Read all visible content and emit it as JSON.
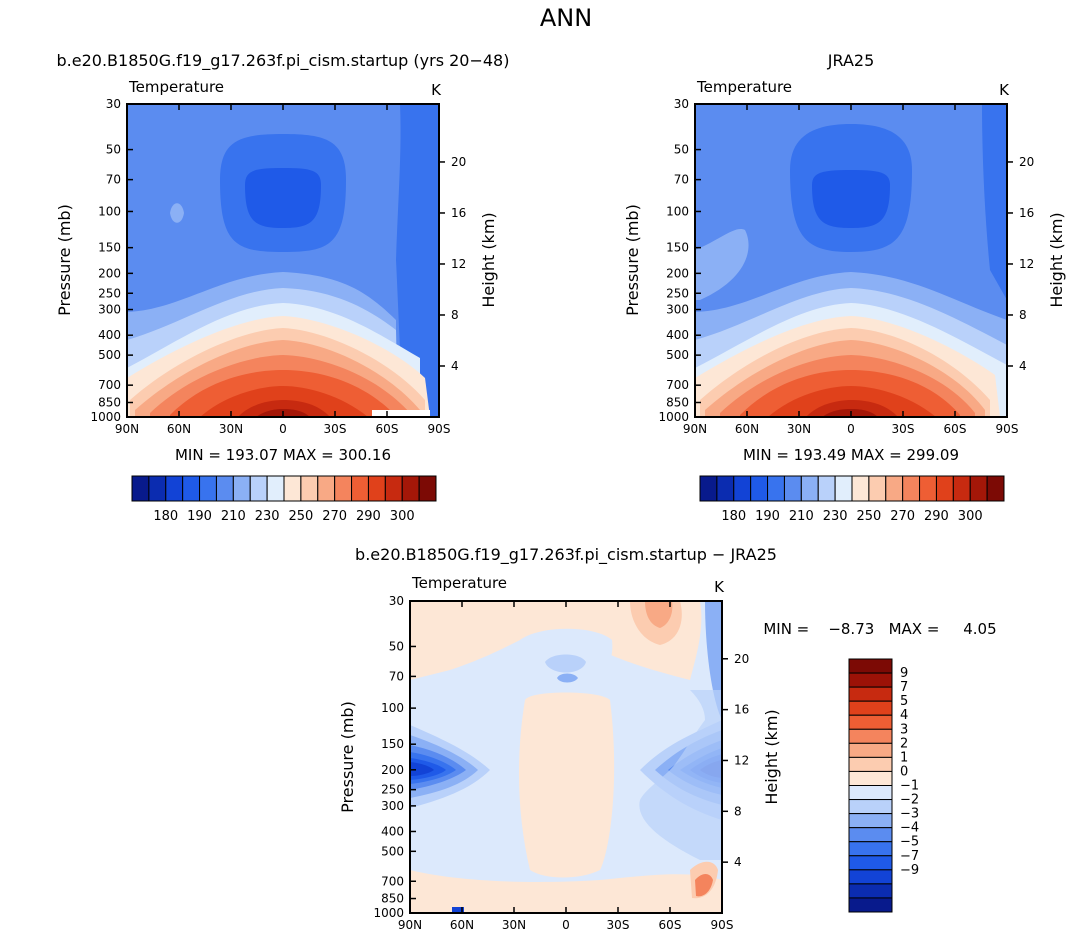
{
  "page": {
    "title": "ANN"
  },
  "colors": {
    "absolute_scale": [
      "#081a8c",
      "#0b2cb0",
      "#1243d6",
      "#1f5ae8",
      "#3873ee",
      "#5b8cf0",
      "#8bb0f5",
      "#b9d1fa",
      "#e1eefc",
      "#fde7d6",
      "#fcccb0",
      "#f8a985",
      "#f4845d",
      "#ee5e34",
      "#e0411b",
      "#c72a10",
      "#a41708",
      "#7c0a05"
    ],
    "diff_scale": [
      "#081a8c",
      "#0b2cb0",
      "#1243d6",
      "#1f5ae8",
      "#3873ee",
      "#5b8cf0",
      "#8bb0f5",
      "#b9d1fa",
      "#dce9fc",
      "#fde7d6",
      "#fcccb0",
      "#f8a985",
      "#f4845d",
      "#ee5e34",
      "#e0411b",
      "#c72a10",
      "#9c1207",
      "#7c0a05"
    ]
  },
  "chart_data": [
    {
      "id": "model",
      "type": "heatmap",
      "title": "b.e20.B1850G.f19_g17.263f.pi_cism.startup (yrs 20−48)",
      "left_label": "Temperature",
      "right_label": "K",
      "ylabel": "Pressure (mb)",
      "ylabel_right": "Height (km)",
      "x_ticks": [
        "90N",
        "60N",
        "30N",
        "0",
        "30S",
        "60S",
        "90S"
      ],
      "y_ticks": [
        30,
        50,
        70,
        100,
        150,
        200,
        250,
        300,
        400,
        500,
        700,
        850,
        1000
      ],
      "y_right_ticks": [
        4,
        8,
        12,
        16,
        20
      ],
      "ylim": [
        1000,
        30
      ],
      "stats_text": "MIN = 193.07   MAX = 300.16",
      "colorbar_labels": [
        "180",
        "190",
        "210",
        "230",
        "250",
        "270",
        "290",
        "300"
      ],
      "grid": false
    },
    {
      "id": "obs",
      "type": "heatmap",
      "title": "JRA25",
      "left_label": "Temperature",
      "right_label": "K",
      "ylabel": "Pressure (mb)",
      "ylabel_right": "Height (km)",
      "x_ticks": [
        "90N",
        "60N",
        "30N",
        "0",
        "30S",
        "60S",
        "90S"
      ],
      "y_ticks": [
        30,
        50,
        70,
        100,
        150,
        200,
        250,
        300,
        400,
        500,
        700,
        850,
        1000
      ],
      "y_right_ticks": [
        4,
        8,
        12,
        16,
        20
      ],
      "ylim": [
        1000,
        30
      ],
      "stats_text": "MIN = 193.49   MAX = 299.09",
      "colorbar_labels": [
        "180",
        "190",
        "210",
        "230",
        "250",
        "270",
        "290",
        "300"
      ],
      "grid": false
    },
    {
      "id": "diff",
      "type": "heatmap",
      "title": "b.e20.B1850G.f19_g17.263f.pi_cism.startup − JRA25",
      "left_label": "Temperature",
      "right_label": "K",
      "ylabel": "Pressure (mb)",
      "ylabel_right": "Height (km)",
      "x_ticks": [
        "90N",
        "60N",
        "30N",
        "0",
        "30S",
        "60S",
        "90S"
      ],
      "y_ticks": [
        30,
        50,
        70,
        100,
        150,
        200,
        250,
        300,
        400,
        500,
        700,
        850,
        1000
      ],
      "y_right_ticks": [
        4,
        8,
        12,
        16,
        20
      ],
      "ylim": [
        1000,
        30
      ],
      "stats_text": "MIN =    −8.73   MAX =     4.05",
      "colorbar_labels": [
        "9",
        "7",
        "5",
        "4",
        "3",
        "2",
        "1",
        "0",
        "−1",
        "−2",
        "−3",
        "−4",
        "−5",
        "−7",
        "−9"
      ],
      "grid": false
    }
  ]
}
